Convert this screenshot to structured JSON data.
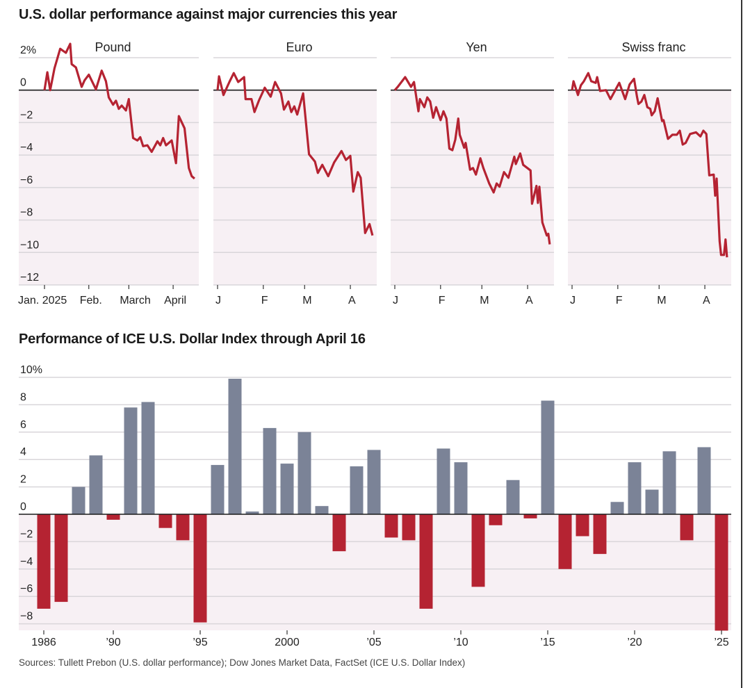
{
  "colors": {
    "line": "#b52332",
    "bar_positive": "#7b8397",
    "bar_negative": "#b52332",
    "shade": "#f7f0f4",
    "grid": "#d9d6da",
    "zero": "#1a1a1a"
  },
  "chart_data": [
    {
      "type": "line",
      "title": "U.S. dollar performance against major currencies this year",
      "ylim": [
        -12,
        2
      ],
      "yticks": [
        "2%",
        "0",
        "−2",
        "−4",
        "−6",
        "−8",
        "−10",
        "−12"
      ],
      "ytick_values": [
        2,
        0,
        -2,
        -4,
        -6,
        -8,
        -10,
        -12
      ],
      "grid": true,
      "xlim": [
        "2025-01-01",
        "2025-04-17"
      ],
      "panels": [
        {
          "name": "Pound",
          "xticks": [
            "Jan. 2025",
            "Feb.",
            "March",
            "April"
          ],
          "points": [
            [
              "2025-01-01",
              0
            ],
            [
              "2025-01-03",
              1.1
            ],
            [
              "2025-01-05",
              0
            ],
            [
              "2025-01-08",
              1.35
            ],
            [
              "2025-01-12",
              2.55
            ],
            [
              "2025-01-16",
              2.3
            ],
            [
              "2025-01-19",
              2.85
            ],
            [
              "2025-01-20",
              1.6
            ],
            [
              "2025-01-23",
              1.4
            ],
            [
              "2025-01-27",
              0.2
            ],
            [
              "2025-01-29",
              0.6
            ],
            [
              "2025-02-01",
              0.95
            ],
            [
              "2025-02-06",
              0.05
            ],
            [
              "2025-02-10",
              1.2
            ],
            [
              "2025-02-13",
              0.55
            ],
            [
              "2025-02-15",
              -0.45
            ],
            [
              "2025-02-18",
              -0.9
            ],
            [
              "2025-02-20",
              -0.65
            ],
            [
              "2025-02-22",
              -1.15
            ],
            [
              "2025-02-24",
              -0.95
            ],
            [
              "2025-02-27",
              -1.25
            ],
            [
              "2025-03-01",
              -0.55
            ],
            [
              "2025-03-04",
              -2.95
            ],
            [
              "2025-03-07",
              -3.1
            ],
            [
              "2025-03-09",
              -2.9
            ],
            [
              "2025-03-11",
              -3.45
            ],
            [
              "2025-03-14",
              -3.4
            ],
            [
              "2025-03-17",
              -3.8
            ],
            [
              "2025-03-21",
              -3.15
            ],
            [
              "2025-03-23",
              -3.4
            ],
            [
              "2025-03-25",
              -2.95
            ],
            [
              "2025-03-27",
              -3.4
            ],
            [
              "2025-03-31",
              -3.1
            ],
            [
              "2025-04-03",
              -4.5
            ],
            [
              "2025-04-05",
              -1.6
            ],
            [
              "2025-04-09",
              -2.35
            ],
            [
              "2025-04-12",
              -4.8
            ],
            [
              "2025-04-14",
              -5.3
            ],
            [
              "2025-04-16",
              -5.45
            ]
          ]
        },
        {
          "name": "Euro",
          "xticks": [
            "J",
            "F",
            "M",
            "A"
          ],
          "points": [
            [
              "2025-01-01",
              0
            ],
            [
              "2025-01-02",
              0.85
            ],
            [
              "2025-01-05",
              -0.3
            ],
            [
              "2025-01-09",
              0.5
            ],
            [
              "2025-01-12",
              1.05
            ],
            [
              "2025-01-15",
              0.5
            ],
            [
              "2025-01-19",
              0.8
            ],
            [
              "2025-01-20",
              -0.55
            ],
            [
              "2025-01-24",
              -0.55
            ],
            [
              "2025-01-26",
              -1.35
            ],
            [
              "2025-01-29",
              -0.65
            ],
            [
              "2025-02-02",
              0.15
            ],
            [
              "2025-02-06",
              -0.4
            ],
            [
              "2025-02-09",
              0.5
            ],
            [
              "2025-02-13",
              -0.2
            ],
            [
              "2025-02-15",
              -1.2
            ],
            [
              "2025-02-18",
              -0.7
            ],
            [
              "2025-02-20",
              -1.35
            ],
            [
              "2025-02-22",
              -1.0
            ],
            [
              "2025-02-24",
              -1.5
            ],
            [
              "2025-02-28",
              -0.2
            ],
            [
              "2025-03-04",
              -3.95
            ],
            [
              "2025-03-08",
              -4.4
            ],
            [
              "2025-03-10",
              -5.1
            ],
            [
              "2025-03-13",
              -4.6
            ],
            [
              "2025-03-17",
              -5.3
            ],
            [
              "2025-03-21",
              -4.45
            ],
            [
              "2025-03-26",
              -3.75
            ],
            [
              "2025-03-29",
              -4.3
            ],
            [
              "2025-04-01",
              -4.05
            ],
            [
              "2025-04-03",
              -6.25
            ],
            [
              "2025-04-06",
              -5.05
            ],
            [
              "2025-04-08",
              -5.4
            ],
            [
              "2025-04-11",
              -8.8
            ],
            [
              "2025-04-14",
              -8.25
            ],
            [
              "2025-04-16",
              -8.95
            ]
          ]
        },
        {
          "name": "Yen",
          "xticks": [
            "J",
            "F",
            "M",
            "A"
          ],
          "points": [
            [
              "2025-01-01",
              0
            ],
            [
              "2025-01-03",
              0.2
            ],
            [
              "2025-01-08",
              0.8
            ],
            [
              "2025-01-12",
              0.2
            ],
            [
              "2025-01-14",
              0.5
            ],
            [
              "2025-01-17",
              -1.3
            ],
            [
              "2025-01-18",
              -0.55
            ],
            [
              "2025-01-21",
              -1.05
            ],
            [
              "2025-01-23",
              -0.45
            ],
            [
              "2025-01-25",
              -0.7
            ],
            [
              "2025-01-27",
              -1.7
            ],
            [
              "2025-01-29",
              -1.05
            ],
            [
              "2025-02-01",
              -1.85
            ],
            [
              "2025-02-03",
              -1.3
            ],
            [
              "2025-02-05",
              -1.75
            ],
            [
              "2025-02-07",
              -3.6
            ],
            [
              "2025-02-09",
              -3.7
            ],
            [
              "2025-02-11",
              -3.05
            ],
            [
              "2025-02-13",
              -1.75
            ],
            [
              "2025-02-14",
              -2.75
            ],
            [
              "2025-02-17",
              -3.55
            ],
            [
              "2025-02-18",
              -3.25
            ],
            [
              "2025-02-21",
              -4.9
            ],
            [
              "2025-02-23",
              -4.8
            ],
            [
              "2025-02-25",
              -5.2
            ],
            [
              "2025-02-28",
              -4.2
            ],
            [
              "2025-03-02",
              -4.8
            ],
            [
              "2025-03-06",
              -5.75
            ],
            [
              "2025-03-09",
              -6.3
            ],
            [
              "2025-03-11",
              -5.75
            ],
            [
              "2025-03-13",
              -5.95
            ],
            [
              "2025-03-16",
              -5.05
            ],
            [
              "2025-03-19",
              -5.4
            ],
            [
              "2025-03-23",
              -4.1
            ],
            [
              "2025-03-24",
              -4.55
            ],
            [
              "2025-03-27",
              -3.9
            ],
            [
              "2025-03-29",
              -4.6
            ],
            [
              "2025-04-03",
              -4.95
            ],
            [
              "2025-04-04",
              -7.0
            ],
            [
              "2025-04-07",
              -5.9
            ],
            [
              "2025-04-08",
              -6.95
            ],
            [
              "2025-04-09",
              -5.95
            ],
            [
              "2025-04-11",
              -8.15
            ],
            [
              "2025-04-14",
              -8.95
            ],
            [
              "2025-04-15",
              -8.85
            ],
            [
              "2025-04-16",
              -9.5
            ]
          ]
        },
        {
          "name": "Swiss franc",
          "xticks": [
            "J",
            "F",
            "M",
            "A"
          ],
          "points": [
            [
              "2025-01-01",
              0
            ],
            [
              "2025-01-02",
              0.55
            ],
            [
              "2025-01-05",
              -0.3
            ],
            [
              "2025-01-07",
              0.3
            ],
            [
              "2025-01-09",
              0.55
            ],
            [
              "2025-01-12",
              1.05
            ],
            [
              "2025-01-14",
              0.55
            ],
            [
              "2025-01-17",
              0.45
            ],
            [
              "2025-01-18",
              0.8
            ],
            [
              "2025-01-20",
              -0.05
            ],
            [
              "2025-01-24",
              0
            ],
            [
              "2025-01-27",
              -0.55
            ],
            [
              "2025-02-02",
              0.45
            ],
            [
              "2025-02-06",
              -0.55
            ],
            [
              "2025-02-09",
              0.35
            ],
            [
              "2025-02-12",
              0.7
            ],
            [
              "2025-02-14",
              -0.4
            ],
            [
              "2025-02-15",
              -0.85
            ],
            [
              "2025-02-17",
              -0.7
            ],
            [
              "2025-02-19",
              -0.3
            ],
            [
              "2025-02-21",
              -1.05
            ],
            [
              "2025-02-23",
              -1.15
            ],
            [
              "2025-02-24",
              -1.55
            ],
            [
              "2025-02-26",
              -1.3
            ],
            [
              "2025-02-28",
              -0.5
            ],
            [
              "2025-03-03",
              -1.9
            ],
            [
              "2025-03-04",
              -1.85
            ],
            [
              "2025-03-07",
              -3.0
            ],
            [
              "2025-03-10",
              -2.75
            ],
            [
              "2025-03-13",
              -2.75
            ],
            [
              "2025-03-15",
              -2.5
            ],
            [
              "2025-03-17",
              -3.35
            ],
            [
              "2025-03-19",
              -3.25
            ],
            [
              "2025-03-22",
              -2.7
            ],
            [
              "2025-03-26",
              -2.6
            ],
            [
              "2025-03-29",
              -2.85
            ],
            [
              "2025-03-31",
              -2.5
            ],
            [
              "2025-04-02",
              -2.7
            ],
            [
              "2025-04-04",
              -5.25
            ],
            [
              "2025-04-07",
              -5.2
            ],
            [
              "2025-04-08",
              -6.5
            ],
            [
              "2025-04-09",
              -5.45
            ],
            [
              "2025-04-11",
              -9.3
            ],
            [
              "2025-04-12",
              -10.15
            ],
            [
              "2025-04-14",
              -10.15
            ],
            [
              "2025-04-15",
              -9.2
            ],
            [
              "2025-04-16",
              -10.3
            ]
          ]
        }
      ]
    },
    {
      "type": "bar",
      "title": "Performance of ICE U.S. Dollar Index through April 16",
      "ylim": [
        -8.5,
        10
      ],
      "yticks": [
        "10%",
        "8",
        "6",
        "4",
        "2",
        "0",
        "−2",
        "−4",
        "−6",
        "−8"
      ],
      "ytick_values": [
        10,
        8,
        6,
        4,
        2,
        0,
        -2,
        -4,
        -6,
        -8
      ],
      "grid": true,
      "xtick_labels": [
        "1986",
        "’90",
        "’95",
        "2000",
        "’05",
        "’10",
        "’15",
        "’20",
        "’25"
      ],
      "xtick_years": [
        1986,
        1990,
        1995,
        2000,
        2005,
        2010,
        2015,
        2020,
        2025
      ],
      "categories": [
        1986,
        1987,
        1988,
        1989,
        1990,
        1991,
        1992,
        1993,
        1994,
        1995,
        1996,
        1997,
        1998,
        1999,
        2000,
        2001,
        2002,
        2003,
        2004,
        2005,
        2006,
        2007,
        2008,
        2009,
        2010,
        2011,
        2012,
        2013,
        2014,
        2015,
        2016,
        2017,
        2018,
        2019,
        2020,
        2021,
        2022,
        2023,
        2024,
        2025
      ],
      "values": [
        -6.9,
        -6.4,
        2.0,
        4.3,
        -0.4,
        7.8,
        8.2,
        -1.0,
        -1.9,
        -7.9,
        3.6,
        9.9,
        0.2,
        6.3,
        3.7,
        6.0,
        0.6,
        -2.7,
        3.5,
        4.7,
        -1.7,
        -1.9,
        -6.9,
        4.8,
        3.8,
        -5.3,
        -0.8,
        2.5,
        -0.3,
        8.3,
        -4.0,
        -1.6,
        -2.9,
        0.9,
        3.8,
        1.8,
        4.6,
        -1.9,
        4.9,
        -8.5
      ]
    }
  ],
  "source": "Sources: Tullett Prebon (U.S. dollar performance); Dow Jones Market Data, FactSet (ICE U.S. Dollar Index)"
}
